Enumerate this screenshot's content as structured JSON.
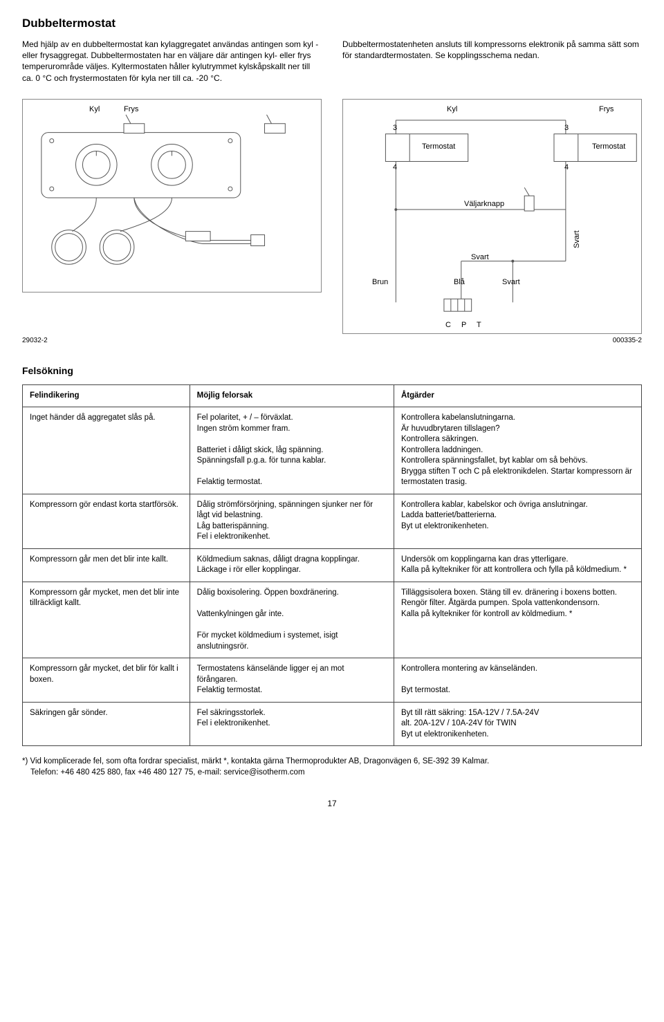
{
  "header": {
    "title": "Dubbeltermostat",
    "para1": "Med hjälp av en dubbeltermostat kan kylaggregatet användas antingen som kyl - eller frysaggregat. Dubbeltermostaten har en väljare där antingen kyl- eller frys temperurområde väljes. Kyltermostaten håller kylutrymmet kylskåpskallt ner till ca. 0 °C och frystermostaten för kyla ner till ca. -20 °C.",
    "para2": "Dubbeltermostatenheten ansluts till kompressorns elektronik på samma sätt som för standardtermostaten. Se kopplingsschema nedan."
  },
  "leftDiagram": {
    "kyl": "Kyl",
    "frys": "Frys",
    "figid": "29032-2"
  },
  "rightDiagram": {
    "kyl": "Kyl",
    "frys": "Frys",
    "termostat1": "Termostat",
    "termostat2": "Termostat",
    "num3a": "3",
    "num3b": "3",
    "num4a": "4",
    "num4b": "4",
    "valjarknapp": "Väljarknapp",
    "svart1": "Svart",
    "svart2": "Svart",
    "svart3": "Svart",
    "brun": "Brun",
    "bla": "Blå",
    "cpt": "C P T",
    "figid": "000335-2"
  },
  "troubleshooting": {
    "title": "Felsökning",
    "headers": [
      "Felindikering",
      "Möjlig felorsak",
      "Åtgärder"
    ],
    "rows": [
      {
        "c1": "Inget händer då aggregatet slås på.",
        "c2": "Fel polaritet, + / – förväxlat.\nIngen ström kommer fram.\n\nBatteriet i dåligt skick, låg spänning.\nSpänningsfall p.g.a. för tunna kablar.\n\nFelaktig termostat.",
        "c3": "Kontrollera kabelanslutningarna.\nÄr huvudbrytaren tillslagen?\nKontrollera säkringen.\nKontrollera laddningen.\nKontrollera spänningsfallet, byt kablar om så behövs.\nBrygga stiften T och C på elektronikdelen. Startar kompressorn är termostaten trasig."
      },
      {
        "c1": "Kompressorn gör endast korta startförsök.",
        "c2": "Dålig strömförsörjning, spänningen sjunker ner för lågt vid belastning.\nLåg batterispänning.\nFel i elektronikenhet.",
        "c3": "Kontrollera kablar, kabelskor och övriga anslutningar.\nLadda batteriet/batterierna.\nByt ut elektronikenheten."
      },
      {
        "c1": "Kompressorn går men det blir inte kallt.",
        "c2": "Köldmedium saknas, dåligt dragna kopplingar.\nLäckage i rör eller kopplingar.",
        "c3": "Undersök om kopplingarna kan dras ytterligare.\nKalla på kyltekniker för att kontrollera och fylla på köldmedium. *"
      },
      {
        "c1": "Kompressorn går mycket, men det blir inte tillräckligt kallt.",
        "c2": "Dålig boxisolering. Öppen boxdränering.\n\nVattenkylningen går inte.\n\nFör mycket köldmedium i systemet, isigt anslutningsrör.",
        "c3": "Tilläggsisolera boxen. Stäng till ev. dränering i boxens botten.\nRengör filter. Åtgärda pumpen. Spola vattenkondensorn.\nKalla på kyltekniker för kontroll av köldmedium. *"
      },
      {
        "c1": "Kompressorn går mycket, det blir för kallt i boxen.",
        "c2": "Termostatens känselände ligger ej an mot förångaren.\nFelaktig termostat.",
        "c3": "Kontrollera montering av känseländen.\n\nByt termostat."
      },
      {
        "c1": "Säkringen går sönder.",
        "c2": "Fel säkringsstorlek.\nFel i elektronikenhet.",
        "c3": "Byt till rätt säkring: 15A-12V / 7.5A-24V\nalt. 20A-12V / 10A-24V för TWIN\nByt ut elektronikenheten."
      }
    ]
  },
  "footnote": {
    "l1": "*) Vid komplicerade fel, som ofta fordrar specialist, märkt *, kontakta gärna Thermoprodukter AB, Dragonvägen 6, SE-392 39 Kalmar.",
    "l2": "Telefon: +46 480 425 880, fax +46 480 127 75, e-mail: service@isotherm.com"
  },
  "page": "17"
}
